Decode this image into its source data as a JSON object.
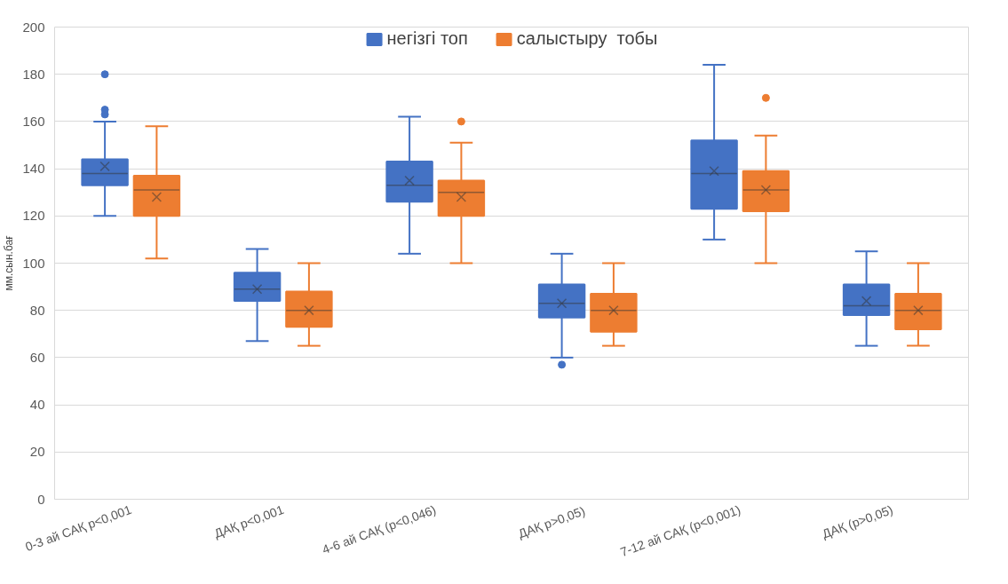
{
  "chart_data": {
    "type": "box",
    "categories": [
      "0-3 ай САҚ p<0,001",
      "ДАҚ p<0,001",
      "4-6 ай САҚ (p<0,046)",
      "ДАҚ  p>0,05)",
      "7-12 ай САҚ (p<0,001)",
      "ДАҚ (p>0,05)"
    ],
    "ylabel": "мм.сын.бағ",
    "ylim": [
      0,
      200
    ],
    "yticks": [
      0,
      20,
      40,
      60,
      80,
      100,
      120,
      140,
      160,
      180,
      200
    ],
    "grid": "y",
    "legend": "top",
    "series": [
      {
        "name": "негізгі топ",
        "color": "#4472c4",
        "boxes": [
          {
            "low": 120,
            "q1": 133,
            "median": 138,
            "q3": 144,
            "high": 160,
            "mean": 141,
            "outliers": [
              163,
              165,
              180
            ]
          },
          {
            "low": 67,
            "q1": 84,
            "median": 89,
            "q3": 96,
            "high": 106,
            "mean": 89
          },
          {
            "low": 104,
            "q1": 126,
            "median": 133,
            "q3": 143,
            "high": 162,
            "mean": 135
          },
          {
            "low": 60,
            "q1": 77,
            "median": 83,
            "q3": 91,
            "high": 104,
            "mean": 83,
            "outliers": [
              57
            ]
          },
          {
            "low": 110,
            "q1": 123,
            "median": 138,
            "q3": 152,
            "high": 184,
            "mean": 139
          },
          {
            "low": 65,
            "q1": 78,
            "median": 82,
            "q3": 91,
            "high": 105,
            "mean": 84
          }
        ]
      },
      {
        "name": "салыстыру  тобы",
        "color": "#ed7d31",
        "boxes": [
          {
            "low": 102,
            "q1": 120,
            "median": 131,
            "q3": 137,
            "high": 158,
            "mean": 128
          },
          {
            "low": 65,
            "q1": 73,
            "median": 80,
            "q3": 88,
            "high": 100,
            "mean": 80
          },
          {
            "low": 100,
            "q1": 120,
            "median": 130,
            "q3": 135,
            "high": 151,
            "mean": 128,
            "outliers": [
              160
            ]
          },
          {
            "low": 65,
            "q1": 71,
            "median": 80,
            "q3": 87,
            "high": 100,
            "mean": 80
          },
          {
            "low": 100,
            "q1": 122,
            "median": 131,
            "q3": 139,
            "high": 154,
            "mean": 131,
            "outliers": [
              170
            ]
          },
          {
            "low": 65,
            "q1": 72,
            "median": 80,
            "q3": 87,
            "high": 100,
            "mean": 80
          }
        ]
      }
    ]
  }
}
